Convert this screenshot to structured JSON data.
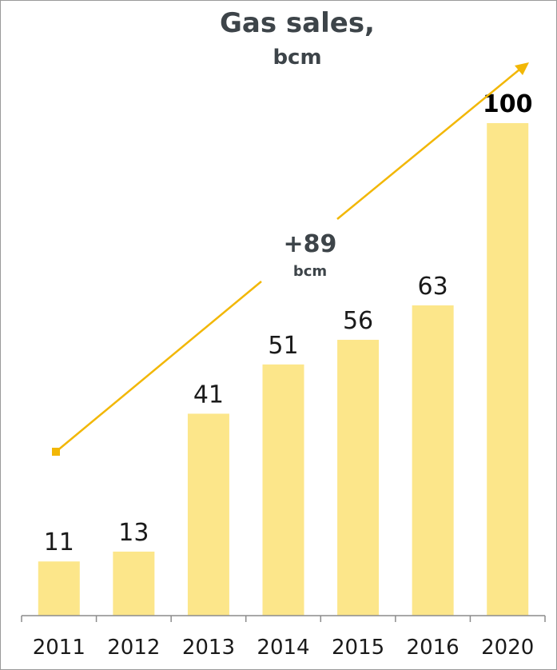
{
  "chart_data": {
    "type": "bar",
    "title": "Gas sales,",
    "subtitle": "bcm",
    "categories": [
      "2011",
      "2012",
      "2013",
      "2014",
      "2015",
      "2016",
      "2020"
    ],
    "values": [
      11,
      13,
      41,
      51,
      56,
      63,
      100
    ],
    "highlighted_value_label": "100",
    "bar_color": "#fce68a",
    "arrow_color": "#f2b705",
    "annotation": {
      "value": "+89",
      "unit": "bcm"
    },
    "xlabel": "",
    "ylabel": "",
    "ylim": [
      0,
      100
    ],
    "grid": false,
    "legend": "none"
  }
}
